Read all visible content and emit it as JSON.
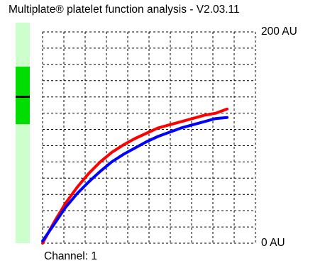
{
  "window": {
    "title": "Multiplate® platelet function analysis - V2.03.11"
  },
  "level_indicator": {
    "track_color": "#ccffcc",
    "fill_color": "#00dd00",
    "marker_color": "#000000",
    "fill_start_fraction": 0.2,
    "fill_end_fraction": 0.46,
    "marker_fraction": 0.33
  },
  "chart_data": {
    "type": "line",
    "ylim": [
      0,
      200
    ],
    "y_ticks": [
      {
        "value": 200,
        "label": "200 AU"
      },
      {
        "value": 0,
        "label": "0 AU"
      }
    ],
    "grid": true,
    "x": [
      0,
      1,
      2,
      3,
      4,
      5,
      6,
      7,
      8,
      9,
      10,
      11,
      12,
      13,
      14,
      15,
      16
    ],
    "series": [
      {
        "color": "#ff0000",
        "values": [
          0,
          20,
          38,
          53,
          66,
          77,
          86,
          93,
          99,
          104,
          109,
          112,
          115,
          118,
          121,
          123,
          127
        ]
      },
      {
        "color": "#0000ff",
        "values": [
          2,
          18,
          34,
          47,
          58,
          68,
          77,
          84,
          90,
          96,
          101,
          105,
          109,
          112,
          115,
          118,
          119
        ]
      }
    ]
  },
  "footer": {
    "channel_label": "Channel: 1"
  }
}
